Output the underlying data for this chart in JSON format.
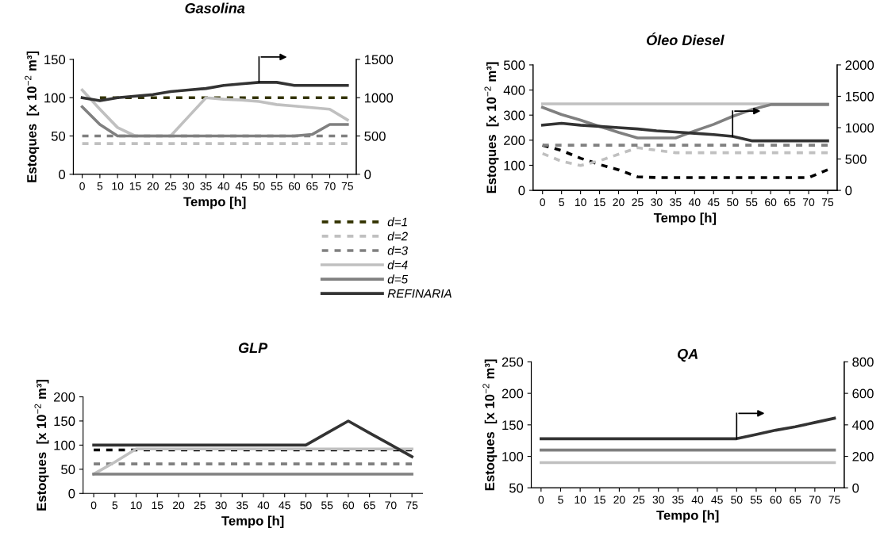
{
  "chart_data": [
    {
      "type": "line",
      "title": "Gasolina",
      "xlabel": "Tempo [h]",
      "ylabel": "Estoques  [x 10$^{−2}$ m³]",
      "categories": [
        "0",
        "5",
        "10",
        "15",
        "20",
        "25",
        "30",
        "35",
        "40",
        "45",
        "50",
        "55",
        "60",
        "65",
        "70",
        "75"
      ],
      "ylim": [
        0,
        150
      ],
      "yticks": [
        0,
        50,
        100,
        150
      ],
      "y2lim": [
        0,
        1500
      ],
      "y2ticks": [
        0,
        500,
        1000,
        1500
      ],
      "legend": "bottom right",
      "series": [
        {
          "name": "d=1",
          "color": "#333300",
          "line_style": "dashed",
          "values": [
            null,
            100,
            100,
            100,
            100,
            100,
            100,
            100,
            100,
            100,
            100,
            100,
            100,
            100,
            100,
            100
          ]
        },
        {
          "name": "d=2",
          "color": "#c0c0c0",
          "line_style": "dashed",
          "values": [
            40,
            40,
            40,
            40,
            40,
            40,
            40,
            40,
            40,
            40,
            40,
            40,
            40,
            40,
            40,
            40
          ]
        },
        {
          "name": "d=3",
          "color": "#808080",
          "line_style": "dashed",
          "values": [
            50,
            50,
            50,
            50,
            50,
            50,
            50,
            50,
            50,
            50,
            50,
            50,
            50,
            50,
            50,
            50
          ]
        },
        {
          "name": "d=4",
          "color": "#c0c0c0",
          "line_style": "solid",
          "values": [
            110,
            85,
            61,
            50,
            50,
            50,
            75,
            100,
            98,
            97,
            95,
            91,
            89,
            87,
            85,
            71
          ]
        },
        {
          "name": "d=5",
          "color": "#808080",
          "line_style": "solid",
          "values": [
            88,
            65,
            50,
            50,
            50,
            50,
            50,
            50,
            50,
            50,
            50,
            50,
            50,
            52,
            65,
            65
          ]
        },
        {
          "name": "REFINARIA",
          "color": "#333333",
          "line_style": "solid",
          "axis": "y2",
          "values": [
            1000,
            960,
            1000,
            1020,
            1040,
            1080,
            1100,
            1120,
            1160,
            1180,
            1200,
            1200,
            1160,
            1160,
            1160,
            1160
          ]
        }
      ]
    },
    {
      "type": "line",
      "title": "Óleo Diesel",
      "xlabel": "Tempo [h]",
      "ylabel": "Estoques  [x 10$^{−2}$ m³]",
      "categories": [
        "0",
        "5",
        "10",
        "15",
        "20",
        "25",
        "30",
        "35",
        "40",
        "45",
        "50",
        "55",
        "60",
        "65",
        "70",
        "75"
      ],
      "ylim": [
        0,
        500
      ],
      "yticks": [
        0,
        100,
        200,
        300,
        400,
        500
      ],
      "y2lim": [
        0,
        2000
      ],
      "y2ticks": [
        0,
        500,
        1000,
        1500,
        2000
      ],
      "series": [
        {
          "color": "#000000",
          "line_style": "dashed",
          "values": [
            180,
            159,
            128,
            103,
            82,
            54,
            51,
            51,
            51,
            51,
            51,
            51,
            51,
            51,
            51,
            82
          ]
        },
        {
          "color": "#c0c0c0",
          "line_style": "dashed",
          "values": [
            147,
            116,
            99,
            118,
            144,
            170,
            160,
            150,
            150,
            150,
            150,
            150,
            150,
            150,
            150,
            150
          ]
        },
        {
          "color": "#808080",
          "line_style": "dashed",
          "values": [
            180,
            180,
            180,
            180,
            180,
            180,
            180,
            180,
            180,
            180,
            180,
            180,
            180,
            180,
            180,
            180
          ]
        },
        {
          "color": "#c0c0c0",
          "line_style": "solid",
          "values": [
            345,
            345,
            345,
            345,
            345,
            345,
            345,
            345,
            345,
            345,
            345,
            345,
            345,
            345,
            345,
            345
          ]
        },
        {
          "color": "#808080",
          "line_style": "solid",
          "values": [
            331,
            302,
            280,
            255,
            231,
            209,
            209,
            209,
            237,
            263,
            295,
            322,
            342,
            342,
            342,
            342
          ]
        },
        {
          "color": "#333333",
          "line_style": "solid",
          "axis": "y2",
          "values": [
            1040,
            1070,
            1040,
            1020,
            1000,
            980,
            950,
            930,
            910,
            890,
            860,
            790,
            790,
            790,
            790,
            790
          ]
        }
      ]
    },
    {
      "type": "line",
      "title": "GLP",
      "xlabel": "Tempo [h]",
      "ylabel": "Estoques  [x 10$^{−2}$ m³]",
      "categories": [
        "0",
        "5",
        "10",
        "15",
        "20",
        "25",
        "30",
        "35",
        "40",
        "45",
        "50",
        "55",
        "60",
        "65",
        "70",
        "75"
      ],
      "ylim": [
        0,
        200
      ],
      "yticks": [
        0,
        50,
        100,
        150,
        200
      ],
      "series": [
        {
          "color": "#000000",
          "line_style": "dashed",
          "values": [
            90,
            90,
            90,
            90,
            90,
            90,
            90,
            90,
            90,
            90,
            90,
            90,
            90,
            90,
            90,
            90
          ]
        },
        {
          "color": "#808080",
          "line_style": "dashed",
          "values": [
            61,
            61,
            61,
            61,
            61,
            61,
            61,
            61,
            61,
            61,
            61,
            61,
            61,
            61,
            61,
            61
          ]
        },
        {
          "color": "#c0c0c0",
          "line_style": "solid",
          "values": [
            40,
            65,
            92,
            92,
            92,
            92,
            92,
            92,
            92,
            92,
            92,
            92,
            92,
            92,
            92,
            92
          ]
        },
        {
          "color": "#808080",
          "line_style": "solid",
          "values": [
            40,
            40,
            40,
            40,
            40,
            40,
            40,
            40,
            40,
            40,
            40,
            40,
            40,
            40,
            40,
            40
          ]
        },
        {
          "color": "#333333",
          "line_style": "solid",
          "values": [
            100,
            100,
            100,
            100,
            100,
            100,
            100,
            100,
            100,
            100,
            100,
            125,
            150,
            125,
            101,
            76
          ]
        }
      ]
    },
    {
      "type": "line",
      "title": "QA",
      "xlabel": "Tempo [h]",
      "ylabel": "Estoques  [x 10$^{−2}$ m³]",
      "categories": [
        "0",
        "5",
        "10",
        "15",
        "20",
        "25",
        "30",
        "35",
        "40",
        "45",
        "50",
        "55",
        "60",
        "65",
        "70",
        "75"
      ],
      "ylim": [
        50,
        250
      ],
      "yticks": [
        50,
        100,
        150,
        200,
        250
      ],
      "y2lim": [
        0,
        800
      ],
      "y2ticks": [
        0,
        200,
        400,
        600,
        800
      ],
      "series": [
        {
          "color": "#c0c0c0",
          "line_style": "solid",
          "values": [
            90,
            90,
            90,
            90,
            90,
            90,
            90,
            90,
            90,
            90,
            90,
            90,
            90,
            90,
            90,
            90
          ]
        },
        {
          "color": "#808080",
          "line_style": "solid",
          "values": [
            110,
            110,
            110,
            110,
            110,
            110,
            110,
            110,
            110,
            110,
            110,
            110,
            110,
            110,
            110,
            110
          ]
        },
        {
          "color": "#333333",
          "line_style": "solid",
          "axis": "y2",
          "values": [
            312,
            312,
            312,
            312,
            312,
            312,
            312,
            312,
            312,
            312,
            312,
            339,
            366,
            388,
            415,
            442
          ]
        }
      ]
    }
  ]
}
